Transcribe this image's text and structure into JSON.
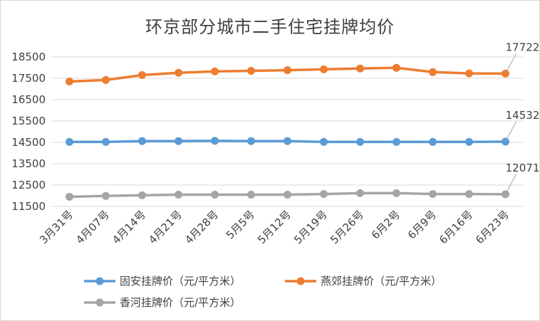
{
  "chart_data": {
    "type": "line",
    "title": "环京部分城市二手住宅挂牌均价",
    "xlabel": "",
    "ylabel": "",
    "categories": [
      "3月31号",
      "4月07号",
      "4月14号",
      "4月21号",
      "4月28号",
      "5月5号",
      "5月12号",
      "5月19号",
      "5月26号",
      "6月2号",
      "6月9号",
      "6月16号",
      "6月23号"
    ],
    "yticks": [
      11500,
      12500,
      13500,
      14500,
      15500,
      16500,
      17500,
      18500
    ],
    "ylim": [
      11500,
      18500
    ],
    "grid": true,
    "legend_position": "bottom",
    "series": [
      {
        "name": "固安挂牌价（元/平方米）",
        "color": "#5b9bd5",
        "values": [
          14520,
          14520,
          14560,
          14560,
          14570,
          14560,
          14560,
          14520,
          14520,
          14520,
          14520,
          14520,
          14532
        ],
        "end_label": "14532"
      },
      {
        "name": "燕郊挂牌价（元/平方米）",
        "color": "#ed7d31",
        "values": [
          17350,
          17420,
          17650,
          17760,
          17820,
          17850,
          17880,
          17920,
          17960,
          17990,
          17790,
          17730,
          17722
        ],
        "end_label": "17722"
      },
      {
        "name": "香河挂牌价（元/平方米）",
        "color": "#a5a5a5",
        "values": [
          11950,
          11990,
          12020,
          12050,
          12050,
          12050,
          12050,
          12080,
          12120,
          12120,
          12080,
          12080,
          12071
        ],
        "end_label": "12071"
      }
    ]
  }
}
